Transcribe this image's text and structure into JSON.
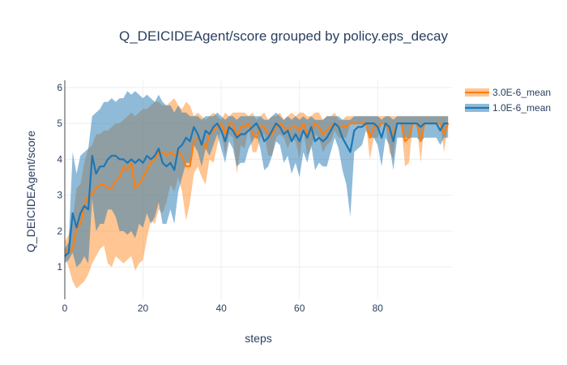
{
  "chart_data": {
    "type": "line",
    "title": "Q_DEICIDEAgent/score grouped by policy.eps_decay",
    "xlabel": "steps",
    "ylabel": "Q_DEICIDEAgent/score",
    "xlim": [
      0,
      99
    ],
    "ylim": [
      0.1,
      6.2
    ],
    "x_ticks": [
      0,
      20,
      40,
      60,
      80
    ],
    "y_ticks": [
      1,
      2,
      3,
      4,
      5,
      6
    ],
    "grid": true,
    "legend_position": "top-right",
    "x": [
      0,
      1,
      2,
      3,
      4,
      5,
      6,
      7,
      8,
      9,
      10,
      11,
      12,
      13,
      14,
      15,
      16,
      17,
      18,
      19,
      20,
      21,
      22,
      23,
      24,
      25,
      26,
      27,
      28,
      29,
      30,
      31,
      32,
      33,
      34,
      35,
      36,
      37,
      38,
      39,
      40,
      41,
      42,
      43,
      44,
      45,
      46,
      47,
      48,
      49,
      50,
      51,
      52,
      53,
      54,
      55,
      56,
      57,
      58,
      59,
      60,
      61,
      62,
      63,
      64,
      65,
      66,
      67,
      68,
      69,
      70,
      71,
      72,
      73,
      74,
      75,
      76,
      77,
      78,
      79,
      80,
      81,
      82,
      83,
      84,
      85,
      86,
      87,
      88,
      89,
      90,
      91,
      92,
      93,
      94,
      95,
      96,
      97,
      98
    ],
    "series": [
      {
        "name": "3.0E-6_mean",
        "color": "#ff7f0e",
        "band_color": "rgba(255,127,14,0.45)",
        "mean": [
          1.5,
          1.4,
          1.5,
          2.1,
          2.2,
          2.7,
          3.0,
          3.0,
          3.2,
          3.3,
          3.3,
          3.2,
          3.2,
          3.4,
          3.5,
          3.8,
          3.7,
          3.9,
          3.2,
          3.3,
          3.5,
          3.7,
          3.9,
          4.0,
          4.2,
          4.2,
          4.1,
          4.2,
          4.1,
          4.2,
          4.1,
          3.8,
          3.8,
          4.5,
          4.6,
          4.5,
          4.3,
          4.7,
          4.8,
          4.9,
          5.0,
          4.7,
          5.0,
          5.0,
          4.6,
          4.9,
          4.9,
          5.0,
          4.7,
          4.6,
          4.9,
          4.9,
          4.7,
          4.7,
          4.9,
          5.0,
          4.9,
          4.8,
          4.9,
          4.9,
          4.8,
          5.0,
          4.7,
          4.8,
          5.0,
          4.9,
          4.7,
          4.8,
          4.9,
          5.0,
          4.9,
          4.9,
          4.9,
          5.0,
          5.0,
          5.0,
          5.0,
          5.0,
          4.6,
          4.9,
          4.9,
          5.0,
          5.0,
          4.8,
          4.7,
          5.0,
          5.0,
          4.5,
          4.6,
          5.0,
          5.0,
          4.5,
          5.0,
          5.0,
          5.0,
          5.0,
          5.0,
          4.7,
          5.0
        ],
        "lower": [
          1.3,
          1.0,
          0.6,
          0.4,
          0.5,
          0.6,
          0.8,
          1.1,
          1.3,
          1.5,
          1.6,
          1.1,
          1.0,
          1.3,
          1.2,
          1.1,
          1.2,
          1.3,
          0.9,
          1.1,
          1.2,
          1.8,
          2.3,
          2.2,
          2.6,
          2.5,
          2.8,
          3.3,
          3.1,
          3.5,
          3.1,
          2.3,
          2.8,
          3.6,
          3.8,
          3.5,
          3.3,
          4.0,
          3.9,
          4.4,
          4.8,
          4.1,
          4.7,
          4.6,
          3.6,
          4.4,
          4.3,
          4.9,
          4.2,
          4.2,
          4.6,
          4.7,
          4.1,
          4.1,
          4.6,
          4.7,
          4.6,
          4.3,
          4.6,
          4.5,
          4.0,
          4.8,
          4.1,
          4.3,
          4.7,
          4.6,
          4.2,
          4.4,
          4.5,
          4.8,
          4.6,
          4.6,
          4.6,
          5.0,
          5.0,
          5.0,
          5.0,
          5.0,
          4.0,
          4.6,
          4.6,
          5.0,
          5.0,
          4.2,
          4.0,
          5.0,
          5.0,
          3.8,
          3.9,
          5.0,
          5.0,
          3.9,
          5.0,
          5.0,
          5.0,
          5.0,
          5.0,
          4.2,
          5.0
        ],
        "upper": [
          1.7,
          1.9,
          2.3,
          3.2,
          3.3,
          3.9,
          4.3,
          4.4,
          4.7,
          4.7,
          4.8,
          4.8,
          4.9,
          5.0,
          5.0,
          5.1,
          5.2,
          5.3,
          5.2,
          5.3,
          5.4,
          5.4,
          5.5,
          5.6,
          5.6,
          5.5,
          5.5,
          5.6,
          5.7,
          5.5,
          5.4,
          5.6,
          5.5,
          5.2,
          5.3,
          5.2,
          5.1,
          5.2,
          5.3,
          5.2,
          5.1,
          5.3,
          5.2,
          5.3,
          5.3,
          5.3,
          5.3,
          5.2,
          5.3,
          5.1,
          5.2,
          5.3,
          5.1,
          5.2,
          5.2,
          5.3,
          5.1,
          5.2,
          5.3,
          5.2,
          5.3,
          5.3,
          5.2,
          5.2,
          5.3,
          5.3,
          5.1,
          5.2,
          5.2,
          5.3,
          5.1,
          5.1,
          5.2,
          5.2,
          5.2,
          5.2,
          5.2,
          5.2,
          5.2,
          5.2,
          5.2,
          5.2,
          5.2,
          5.2,
          5.2,
          5.2,
          5.2,
          5.2,
          5.2,
          5.2,
          5.2,
          5.2,
          5.2,
          5.2,
          5.2,
          5.2,
          5.2,
          5.2,
          5.2
        ]
      },
      {
        "name": "1.0E-6_mean",
        "color": "#1f77b4",
        "band_color": "rgba(31,119,180,0.5)",
        "mean": [
          1.3,
          1.4,
          2.5,
          2.1,
          2.5,
          2.7,
          2.6,
          4.1,
          3.6,
          3.8,
          3.8,
          4.0,
          4.1,
          4.1,
          4.0,
          4.0,
          3.9,
          4.0,
          3.9,
          4.0,
          3.9,
          4.1,
          4.0,
          4.1,
          4.3,
          3.9,
          3.8,
          3.9,
          3.7,
          4.3,
          4.4,
          4.6,
          4.5,
          4.9,
          4.7,
          4.4,
          4.8,
          4.7,
          4.9,
          5.0,
          4.8,
          4.5,
          4.9,
          4.8,
          4.6,
          4.7,
          4.7,
          4.8,
          4.9,
          5.0,
          4.8,
          4.5,
          4.6,
          4.8,
          5.0,
          4.9,
          4.7,
          4.8,
          4.5,
          4.7,
          4.5,
          4.8,
          4.6,
          4.9,
          4.5,
          4.6,
          4.5,
          4.6,
          4.8,
          5.0,
          4.9,
          4.6,
          4.4,
          4.2,
          4.8,
          4.9,
          4.9,
          5.0,
          5.0,
          5.0,
          4.9,
          4.6,
          5.0,
          4.9,
          4.5,
          5.0,
          5.0,
          5.0,
          5.0,
          5.0,
          5.0,
          4.9,
          5.0,
          5.0,
          5.0,
          5.0,
          4.8,
          5.0,
          5.0
        ],
        "lower": [
          1.1,
          1.2,
          1.4,
          1.0,
          1.1,
          1.3,
          1.1,
          2.9,
          2.0,
          2.2,
          2.2,
          2.6,
          2.6,
          2.4,
          2.0,
          2.0,
          1.9,
          2.0,
          1.8,
          2.2,
          2.1,
          2.5,
          2.2,
          2.4,
          2.8,
          2.2,
          2.2,
          2.6,
          2.2,
          3.1,
          3.5,
          3.9,
          3.9,
          4.4,
          4.2,
          3.8,
          4.3,
          4.1,
          4.4,
          4.7,
          4.3,
          3.9,
          4.5,
          4.3,
          3.8,
          3.9,
          3.9,
          4.3,
          4.5,
          4.7,
          4.3,
          3.7,
          3.8,
          4.1,
          4.5,
          4.4,
          3.9,
          4.1,
          3.6,
          3.9,
          3.5,
          4.2,
          3.9,
          4.4,
          3.7,
          3.9,
          3.8,
          3.8,
          4.2,
          4.6,
          4.3,
          3.7,
          3.3,
          2.4,
          4.2,
          4.3,
          4.4,
          4.8,
          4.6,
          4.6,
          4.4,
          3.8,
          4.6,
          4.4,
          3.7,
          4.6,
          4.6,
          4.6,
          4.6,
          4.6,
          4.6,
          4.5,
          4.6,
          4.6,
          4.6,
          4.6,
          4.4,
          4.6,
          4.6
        ],
        "upper": [
          1.5,
          1.7,
          4.2,
          3.6,
          4.1,
          4.2,
          4.3,
          5.2,
          5.3,
          5.4,
          5.6,
          5.6,
          5.7,
          5.6,
          5.7,
          5.7,
          5.9,
          5.8,
          5.9,
          5.8,
          5.7,
          5.8,
          5.7,
          5.6,
          5.8,
          5.6,
          5.5,
          5.5,
          5.3,
          5.5,
          5.3,
          5.3,
          5.2,
          5.2,
          5.2,
          5.1,
          5.2,
          5.2,
          5.2,
          5.3,
          5.2,
          5.1,
          5.2,
          5.2,
          5.1,
          5.2,
          5.2,
          5.2,
          5.2,
          5.2,
          5.2,
          5.1,
          5.1,
          5.2,
          5.3,
          5.2,
          5.1,
          5.2,
          5.1,
          5.2,
          5.1,
          5.2,
          5.1,
          5.2,
          5.1,
          5.1,
          5.1,
          5.2,
          5.2,
          5.2,
          5.2,
          5.1,
          5.1,
          5.1,
          5.2,
          5.2,
          5.2,
          5.2,
          5.2,
          5.2,
          5.2,
          5.1,
          5.2,
          5.2,
          5.1,
          5.2,
          5.2,
          5.2,
          5.2,
          5.2,
          5.2,
          5.2,
          5.2,
          5.2,
          5.2,
          5.2,
          5.2,
          5.2,
          5.2
        ]
      }
    ]
  }
}
